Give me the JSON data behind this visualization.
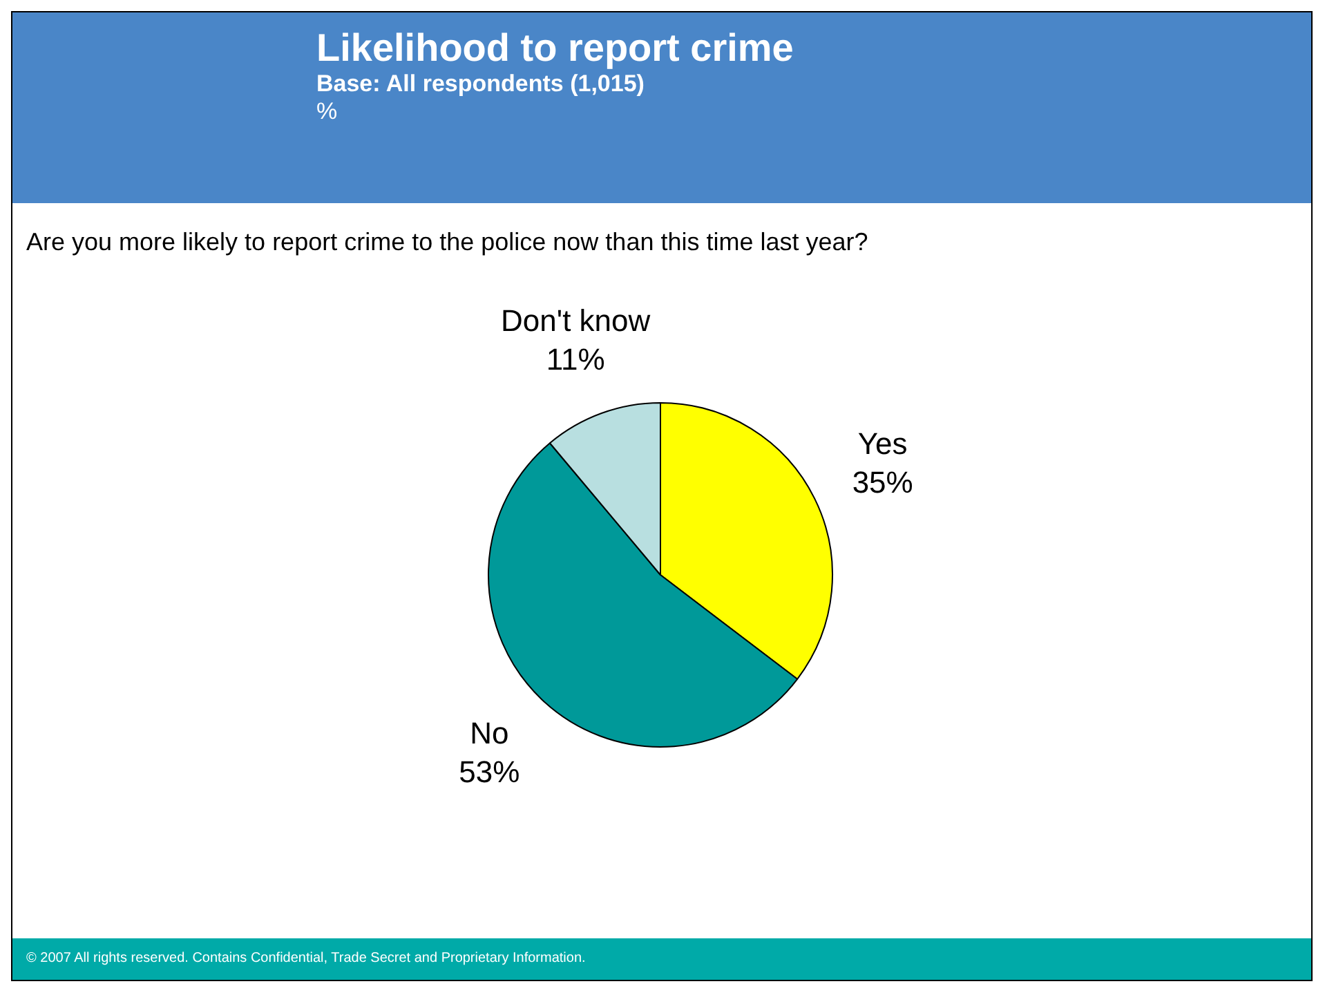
{
  "chart_data": {
    "type": "pie",
    "title": "Likelihood to report crime",
    "subtitle": "Base:  All respondents (1,015)",
    "annotations": [
      "%",
      "Are you more likely to report crime to the police now than this time last year?",
      "© 2007 All rights reserved.  Contains Confidential, Trade Secret and Proprietary Information."
    ],
    "categories": [
      "Yes",
      "No",
      "Don't know"
    ],
    "values": [
      35,
      53,
      11
    ],
    "value_labels": [
      "35%",
      "53%",
      "11%"
    ],
    "colors": [
      "#ffff00",
      "#009999",
      "#b8dfe0"
    ]
  }
}
